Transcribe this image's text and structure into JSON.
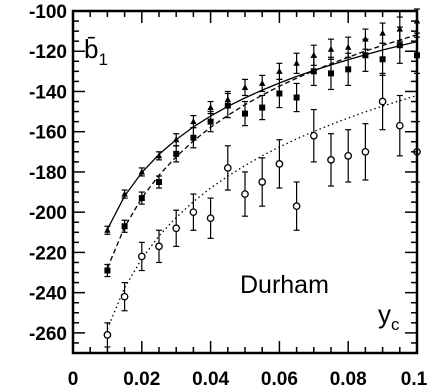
{
  "chart_data": {
    "type": "scatter",
    "xlim": [
      0,
      0.1
    ],
    "ylim": [
      -270,
      -100
    ],
    "x_ticks": [
      0,
      0.02,
      0.04,
      0.06,
      0.08,
      0.1
    ],
    "x_tick_labels": [
      "0",
      "0.02",
      "0.04",
      "0.06",
      "0.08",
      "0.1"
    ],
    "y_ticks": [
      -260,
      -240,
      -220,
      -200,
      -180,
      -160,
      -140,
      -120,
      -100
    ],
    "y_tick_labels": [
      "-260",
      "-240",
      "-220",
      "-200",
      "-180",
      "-160",
      "-140",
      "-120",
      "-100"
    ],
    "ylabel": "b̄",
    "ylabel_sub": "1",
    "xlabel": "y",
    "xlabel_sub": "c",
    "annotation": "Durham",
    "grid": false,
    "series": [
      {
        "marker": "triangle",
        "line_style": "solid",
        "x": [
          0.01,
          0.015,
          0.02,
          0.025,
          0.03,
          0.035,
          0.04,
          0.045,
          0.05,
          0.055,
          0.06,
          0.065,
          0.07,
          0.075,
          0.08,
          0.085,
          0.09,
          0.095,
          0.1
        ],
        "y": [
          -209,
          -191,
          -180,
          -172,
          -164,
          -155,
          -148,
          -144,
          -138,
          -136,
          -130,
          -126,
          -122,
          -119,
          -118,
          -114,
          -111,
          -109,
          -105
        ],
        "err": [
          2,
          2,
          2,
          2,
          3,
          3,
          3,
          4,
          4,
          4,
          4,
          5,
          5,
          5,
          5,
          5,
          5,
          6,
          6
        ],
        "fit": [
          -208.5,
          -192.0,
          -180.3,
          -171.3,
          -163.9,
          -157.6,
          -152.2,
          -147.4,
          -143.2,
          -139.3,
          -135.8,
          -132.5,
          -129.6,
          -126.8,
          -124.2,
          -121.7,
          -119.4,
          -117.3,
          -115.2
        ]
      },
      {
        "marker": "square",
        "line_style": "dashed",
        "x": [
          0.01,
          0.015,
          0.02,
          0.025,
          0.03,
          0.035,
          0.04,
          0.045,
          0.05,
          0.055,
          0.06,
          0.065,
          0.07,
          0.075,
          0.08,
          0.085,
          0.09,
          0.095,
          0.1
        ],
        "y": [
          -229,
          -207,
          -193,
          -185,
          -171,
          -163,
          -155,
          -147,
          -151,
          -148,
          -141,
          -143,
          -130,
          -131,
          -129,
          -122,
          -124,
          -117,
          -122
        ],
        "err": [
          3,
          3,
          3,
          3,
          4,
          5,
          5,
          6,
          6,
          6,
          7,
          7,
          7,
          8,
          8,
          8,
          8,
          9,
          9
        ],
        "fit": [
          -227.8,
          -207.4,
          -192.9,
          -181.6,
          -172.4,
          -164.6,
          -157.8,
          -151.9,
          -146.6,
          -141.8,
          -137.4,
          -133.4,
          -129.7,
          -126.2,
          -123.0,
          -119.9,
          -117.1,
          -114.4,
          -111.8
        ]
      },
      {
        "marker": "circle-open",
        "line_style": "dotted",
        "x": [
          0.01,
          0.015,
          0.02,
          0.025,
          0.03,
          0.035,
          0.04,
          0.045,
          0.05,
          0.055,
          0.06,
          0.065,
          0.07,
          0.075,
          0.08,
          0.085,
          0.09,
          0.095,
          0.1
        ],
        "y": [
          -261,
          -242,
          -222,
          -217,
          -208,
          -200,
          -203,
          -178,
          -191,
          -185,
          -176,
          -197,
          -162,
          -174,
          -172,
          -170,
          -145,
          -157,
          -170
        ],
        "err": [
          6,
          7,
          7,
          8,
          9,
          9,
          10,
          11,
          11,
          12,
          12,
          12,
          13,
          13,
          13,
          14,
          14,
          15,
          15
        ],
        "fit": [
          -258.0,
          -237.6,
          -223.1,
          -211.8,
          -202.6,
          -194.8,
          -188.0,
          -182.1,
          -176.8,
          -172.0,
          -167.6,
          -163.6,
          -159.9,
          -156.4,
          -153.2,
          -150.1,
          -147.3,
          -144.6,
          -142.0
        ]
      }
    ]
  }
}
